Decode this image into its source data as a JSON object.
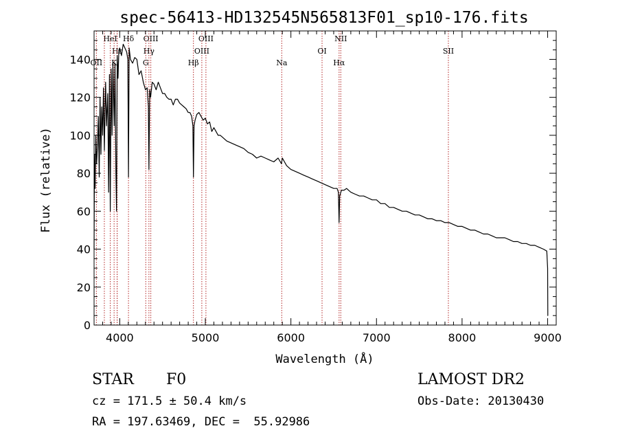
{
  "chart_data": {
    "type": "line",
    "title": "spec-56413-HD132545N565813F01_sp10-176.fits",
    "xlabel": "Wavelength (Å)",
    "ylabel": "Flux (relative)",
    "xlim": [
      3700,
      9100
    ],
    "ylim": [
      0,
      155
    ],
    "xticks": [
      4000,
      5000,
      6000,
      7000,
      8000,
      9000
    ],
    "yticks": [
      0,
      20,
      40,
      60,
      80,
      100,
      120,
      140
    ],
    "series": [
      {
        "name": "spectrum",
        "x": [
          3700,
          3705,
          3712,
          3720,
          3730,
          3740,
          3750,
          3760,
          3770,
          3780,
          3790,
          3800,
          3810,
          3820,
          3830,
          3835,
          3845,
          3860,
          3870,
          3880,
          3889,
          3900,
          3910,
          3920,
          3935,
          3945,
          3955,
          3962,
          3970,
          3980,
          3990,
          4000,
          4020,
          4040,
          4060,
          4080,
          4095,
          4102,
          4110,
          4125,
          4150,
          4175,
          4200,
          4225,
          4250,
          4275,
          4300,
          4320,
          4335,
          4341,
          4350,
          4360,
          4380,
          4400,
          4425,
          4450,
          4475,
          4500,
          4525,
          4550,
          4575,
          4600,
          4625,
          4650,
          4675,
          4700,
          4725,
          4750,
          4775,
          4800,
          4820,
          4840,
          4855,
          4861,
          4868,
          4880,
          4900,
          4925,
          4950,
          4975,
          5000,
          5025,
          5050,
          5075,
          5100,
          5125,
          5150,
          5175,
          5200,
          5250,
          5300,
          5350,
          5400,
          5450,
          5500,
          5550,
          5600,
          5650,
          5700,
          5750,
          5800,
          5850,
          5890,
          5900,
          5950,
          6000,
          6050,
          6100,
          6150,
          6200,
          6250,
          6300,
          6350,
          6400,
          6450,
          6500,
          6540,
          6555,
          6563,
          6570,
          6590,
          6620,
          6650,
          6700,
          6750,
          6800,
          6850,
          6900,
          6950,
          7000,
          7050,
          7100,
          7150,
          7200,
          7250,
          7300,
          7350,
          7400,
          7450,
          7500,
          7550,
          7600,
          7650,
          7700,
          7750,
          7800,
          7850,
          7900,
          7950,
          8000,
          8050,
          8100,
          8150,
          8200,
          8250,
          8300,
          8350,
          8400,
          8450,
          8500,
          8550,
          8600,
          8650,
          8700,
          8750,
          8800,
          8850,
          8900,
          8950,
          8990,
          9000,
          9002,
          9005
        ],
        "y": [
          40,
          90,
          72,
          100,
          85,
          95,
          110,
          78,
          120,
          90,
          115,
          100,
          125,
          92,
          118,
          128,
          105,
          122,
          70,
          132,
          60,
          135,
          100,
          138,
          105,
          138,
          80,
          60,
          142,
          130,
          145,
          146,
          142,
          148,
          146,
          144,
          140,
          78,
          146,
          140,
          138,
          141,
          140,
          132,
          134,
          128,
          124,
          125,
          115,
          82,
          124,
          120,
          128,
          127,
          124,
          128,
          125,
          122,
          122,
          120,
          119,
          119,
          116,
          119,
          119,
          117,
          116,
          115,
          114,
          112,
          112,
          110,
          105,
          78,
          105,
          108,
          111,
          112,
          110,
          108,
          109,
          106,
          107,
          102,
          104,
          102,
          100,
          100,
          99,
          97,
          96,
          95,
          94,
          93,
          91,
          90,
          88,
          89,
          88,
          87,
          86,
          88,
          85,
          88,
          84,
          82,
          81,
          80,
          79,
          78,
          77,
          76,
          75,
          74,
          73,
          72,
          72,
          70,
          54,
          68,
          71,
          71,
          72,
          70,
          69,
          68,
          68,
          67,
          66,
          66,
          64,
          64,
          62,
          62,
          61,
          60,
          60,
          59,
          58,
          58,
          57,
          56,
          56,
          55,
          55,
          54,
          54,
          53,
          52,
          52,
          51,
          50,
          50,
          49,
          48,
          48,
          47,
          46,
          46,
          46,
          45,
          44,
          44,
          43,
          43,
          42,
          42,
          41,
          40,
          39,
          30,
          5,
          5
        ]
      }
    ],
    "lines": [
      {
        "name": "HeI",
        "wavelength": 3889,
        "label": "HeI",
        "row": 0
      },
      {
        "name": "Hd",
        "wavelength": 4102,
        "label": "Hδ",
        "row": 0
      },
      {
        "name": "OIII-4363",
        "wavelength": 4363,
        "label": "OIII",
        "row": 0
      },
      {
        "name": "OIII-5007",
        "wavelength": 5007,
        "label": "OIII",
        "row": 0
      },
      {
        "name": "NII",
        "wavelength": 6583,
        "label": "NII",
        "row": 0
      },
      {
        "name": "He",
        "wavelength": 3970,
        "label": "Hε",
        "row": 1
      },
      {
        "name": "Hg",
        "wavelength": 4341,
        "label": "Hγ",
        "row": 1
      },
      {
        "name": "OIII-4959",
        "wavelength": 4959,
        "label": "OIII",
        "row": 1
      },
      {
        "name": "OI",
        "wavelength": 6364,
        "label": "OI",
        "row": 1
      },
      {
        "name": "SII",
        "wavelength": 7840,
        "label": "SII",
        "row": 1
      },
      {
        "name": "OII",
        "wavelength": 3727,
        "label": "OII",
        "row": 2
      },
      {
        "name": "K",
        "wavelength": 3934,
        "label": "K",
        "row": 2
      },
      {
        "name": "G",
        "wavelength": 4304,
        "label": "G",
        "row": 2
      },
      {
        "name": "Hb",
        "wavelength": 4861,
        "label": "Hβ",
        "row": 2
      },
      {
        "name": "Na",
        "wavelength": 5893,
        "label": "Na",
        "row": 2
      },
      {
        "name": "Ha",
        "wavelength": 6563,
        "label": "Hα",
        "row": 2
      },
      {
        "name": "Hz",
        "wavelength": 3820,
        "label": "",
        "row": 2
      },
      {
        "name": "H",
        "wavelength": 3969,
        "label": "",
        "row": 2
      }
    ]
  },
  "meta": {
    "object_class": "STAR",
    "subclass": "F0",
    "survey": "LAMOST DR2",
    "cz": "cz = 171.5 ± 50.4 km/s",
    "obs_date": "Obs-Date: 20130430",
    "coords": "RA = 197.63469, DEC =  55.92986"
  }
}
